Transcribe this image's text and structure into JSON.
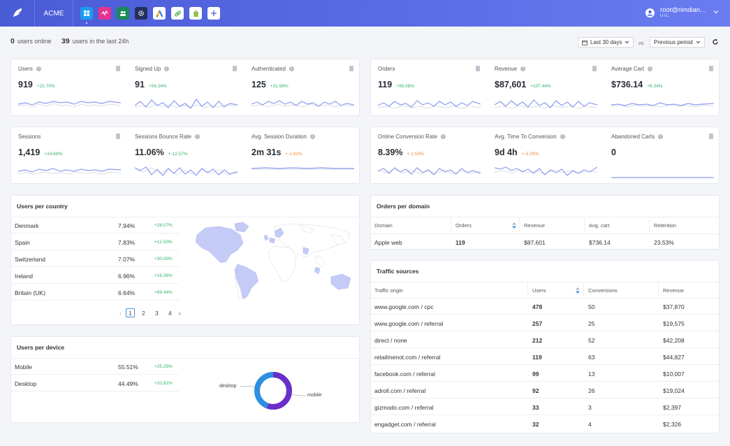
{
  "app": {
    "brand": "ACME"
  },
  "user": {
    "name": "root@rimdian...",
    "timezone": "UTC"
  },
  "stats": {
    "online_count": "0",
    "online_label": "users online",
    "day_count": "39",
    "day_label": "users in the last 24h"
  },
  "filters": {
    "date_range": "Last 30 days",
    "vs": "vs",
    "compare": "Previous period"
  },
  "metrics_row1_left": [
    {
      "label": "Users",
      "value": "919",
      "delta": "+22.70%"
    },
    {
      "label": "Signed Up",
      "value": "91",
      "delta": "+54.24%"
    },
    {
      "label": "Authenticated",
      "value": "125",
      "delta": "+31.58%"
    }
  ],
  "metrics_row1_right": [
    {
      "label": "Orders",
      "value": "119",
      "delta": "+95.08%"
    },
    {
      "label": "Revenue",
      "value": "$87,601",
      "delta": "+107.44%"
    },
    {
      "label": "Average Cart",
      "value": "$736.14",
      "delta": "+6.34%"
    }
  ],
  "metrics_row2_left": [
    {
      "label": "Sessions",
      "value": "1,419",
      "delta": "+24.69%"
    },
    {
      "label": "Sessions Bounce Rate",
      "value": "11.06%",
      "delta": "+-12.57%"
    },
    {
      "label": "Avg. Session Duration",
      "value": "2m 31s",
      "delta": "+-1.62%"
    }
  ],
  "metrics_row2_right": [
    {
      "label": "Online Conversion Rate",
      "value": "8.39%",
      "delta": "+-1.53%"
    },
    {
      "label": "Avg. Time To Conversion",
      "value": "9d 4h",
      "delta": "+-5.29%"
    },
    {
      "label": "Abandoned Carts",
      "value": "0",
      "delta": ""
    }
  ],
  "country": {
    "title": "Users per country",
    "rows": [
      {
        "name": "Denmark",
        "pct": "7.94%",
        "delta": "+28.07%"
      },
      {
        "name": "Spain",
        "pct": "7.83%",
        "delta": "+12.50%"
      },
      {
        "name": "Switzerland",
        "pct": "7.07%",
        "delta": "+30.00%"
      },
      {
        "name": "Ireland",
        "pct": "6.96%",
        "delta": "+16.36%"
      },
      {
        "name": "Britain (UK)",
        "pct": "6.64%",
        "delta": "+69.44%"
      }
    ],
    "pages": [
      "1",
      "2",
      "3",
      "4"
    ]
  },
  "device": {
    "title": "Users per device",
    "rows": [
      {
        "name": "Mobile",
        "pct": "55.51%",
        "delta": "+25.25%"
      },
      {
        "name": "Desktop",
        "pct": "44.49%",
        "delta": "+20.81%"
      }
    ],
    "donut_labels": {
      "desktop": "desktop",
      "mobile": "mobile"
    },
    "colors": {
      "mobile": "#6a2fc7",
      "desktop": "#2d8fe0"
    }
  },
  "orders_domain": {
    "title": "Orders per domain",
    "headers": [
      "Domain",
      "Orders",
      "Revenue",
      "Avg. cart",
      "Retention"
    ],
    "rows": [
      [
        "Apple web",
        "119",
        "$87,601",
        "$736.14",
        "23.53%"
      ]
    ]
  },
  "traffic": {
    "title": "Traffic sources",
    "headers": [
      "Traffic origin",
      "Users",
      "Conversions",
      "Revenue"
    ],
    "rows": [
      [
        "www.google.com / cpc",
        "478",
        "50",
        "$37,870"
      ],
      [
        "www.google.com / referral",
        "257",
        "25",
        "$19,575"
      ],
      [
        "direct / none",
        "212",
        "52",
        "$42,208"
      ],
      [
        "retailmenot.com / referral",
        "119",
        "63",
        "$44,827"
      ],
      [
        "facebook.com / referral",
        "99",
        "13",
        "$10,007"
      ],
      [
        "adroll.com / referral",
        "92",
        "26",
        "$19,024"
      ],
      [
        "gizmodo.com / referral",
        "33",
        "3",
        "$2,397"
      ],
      [
        "engadget.com / referral",
        "32",
        "4",
        "$2,326"
      ]
    ]
  },
  "colors": {
    "topbar": "#5163de",
    "positive": "#31b16b",
    "negative": "#f0893c",
    "spark": "#8e9cf0"
  }
}
